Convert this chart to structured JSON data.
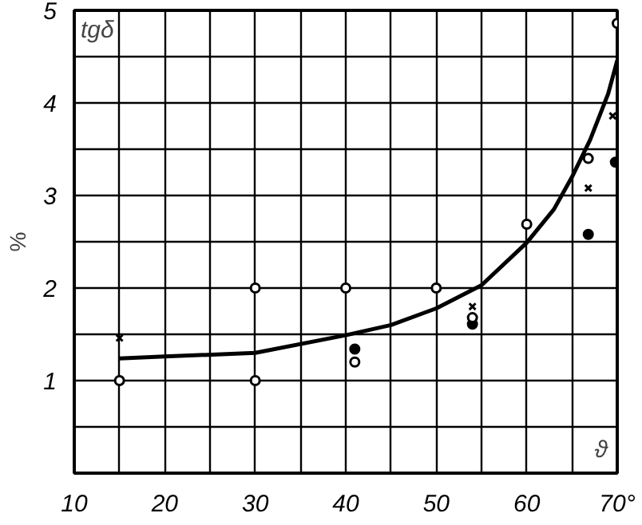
{
  "chart_data": {
    "type": "scatter",
    "ylabel": "%",
    "annotations": [
      "tgδ",
      "ϑ"
    ],
    "xlim": [
      10,
      70
    ],
    "ylim": [
      0,
      5
    ],
    "xticks": [
      10,
      {
        "value": 15,
        "label": null
      },
      20,
      {
        "value": 25,
        "label": null
      },
      30,
      {
        "value": 35,
        "label": null
      },
      40,
      {
        "value": 45,
        "label": null
      },
      50,
      {
        "value": 55,
        "label": null
      },
      60,
      {
        "value": 65,
        "label": null
      },
      {
        "value": 70,
        "label": "70°"
      }
    ],
    "yticks": [
      {
        "value": 0,
        "label": null
      },
      {
        "value": 0.5,
        "label": null
      },
      1,
      {
        "value": 1.5,
        "label": null
      },
      2,
      {
        "value": 2.5,
        "label": null
      },
      3,
      {
        "value": 3.5,
        "label": null
      },
      4,
      {
        "value": 4.5,
        "label": null
      },
      5
    ],
    "grid": true,
    "series": [
      {
        "type": "line",
        "color": "#000000",
        "line_style": "solid",
        "marker": "none",
        "x": [
          15,
          20,
          30,
          40,
          45,
          50,
          55,
          60,
          63,
          65,
          67,
          69,
          70
        ],
        "values": [
          1.24,
          1.26,
          1.3,
          1.49,
          1.6,
          1.78,
          2.03,
          2.49,
          2.85,
          3.2,
          3.6,
          4.1,
          4.46
        ]
      },
      {
        "color": "#000000",
        "marker": "circle",
        "x": [
          41,
          54,
          66.8,
          69.8
        ],
        "values": [
          1.34,
          1.61,
          2.58,
          3.36
        ]
      },
      {
        "color": "#000000",
        "marker": "cross",
        "x": [
          66.8,
          54,
          69.5,
          15
        ],
        "values": [
          3.08,
          1.8,
          3.86,
          1.46
        ]
      },
      {
        "color": "#ffffff",
        "marker": "circle",
        "x": [
          30,
          40,
          50,
          60,
          70,
          66.8,
          15,
          30,
          41,
          54
        ],
        "values": [
          2.0,
          2.0,
          2.0,
          2.69,
          4.86,
          3.4,
          1.0,
          1.0,
          1.2,
          1.68
        ]
      }
    ]
  }
}
